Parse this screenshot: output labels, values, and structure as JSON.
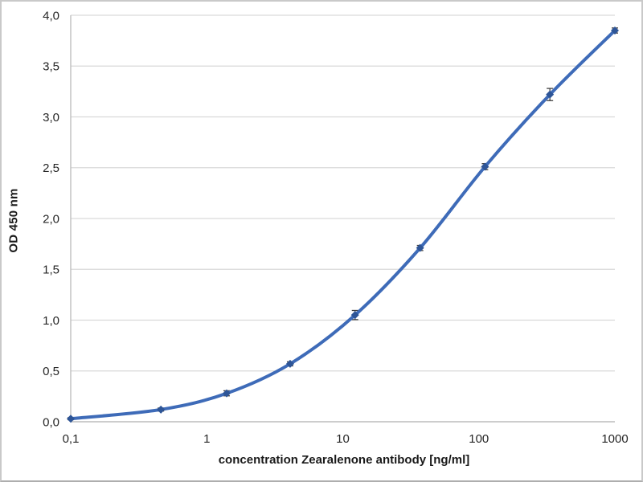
{
  "chart_data": {
    "type": "line",
    "title": "",
    "xlabel": "concentration Zearalenone antibody [ng/ml]",
    "ylabel": "OD 450 nm",
    "x_scale": "log",
    "xlim": [
      0.1,
      1000
    ],
    "ylim": [
      0,
      4
    ],
    "grid": "horizontal-only",
    "legend_position": "none",
    "x_ticks": [
      {
        "value": 0.1,
        "label": "0,1"
      },
      {
        "value": 1,
        "label": "1"
      },
      {
        "value": 10,
        "label": "10"
      },
      {
        "value": 100,
        "label": "100"
      },
      {
        "value": 1000,
        "label": "1000"
      }
    ],
    "y_ticks": [
      {
        "value": 0.0,
        "label": "0,0"
      },
      {
        "value": 0.5,
        "label": "0,5"
      },
      {
        "value": 1.0,
        "label": "1,0"
      },
      {
        "value": 1.5,
        "label": "1,5"
      },
      {
        "value": 2.0,
        "label": "2,0"
      },
      {
        "value": 2.5,
        "label": "2,5"
      },
      {
        "value": 3.0,
        "label": "3,0"
      },
      {
        "value": 3.5,
        "label": "3,5"
      },
      {
        "value": 4.0,
        "label": "4,0"
      }
    ],
    "series": [
      {
        "marker": "diamond",
        "smooth": true,
        "x": [
          0.1,
          0.46,
          1.4,
          4.1,
          12.3,
          37,
          111,
          333,
          1000
        ],
        "y": [
          0.03,
          0.12,
          0.28,
          0.57,
          1.05,
          1.71,
          2.51,
          3.22,
          3.85
        ],
        "y_err": [
          0.01,
          0.015,
          0.025,
          0.02,
          0.045,
          0.025,
          0.03,
          0.06,
          0.025
        ]
      }
    ]
  },
  "style": {
    "line_color": "#3E6BB8",
    "marker_color": "#2E5597",
    "error_bar_color": "#404040",
    "gridline_color": "#D9D9D9",
    "axis_line_color": "#BFBFBF",
    "tick_text_color": "#262626",
    "background_color": "#FFFFFF",
    "frame_color": "#C9C9C9"
  }
}
